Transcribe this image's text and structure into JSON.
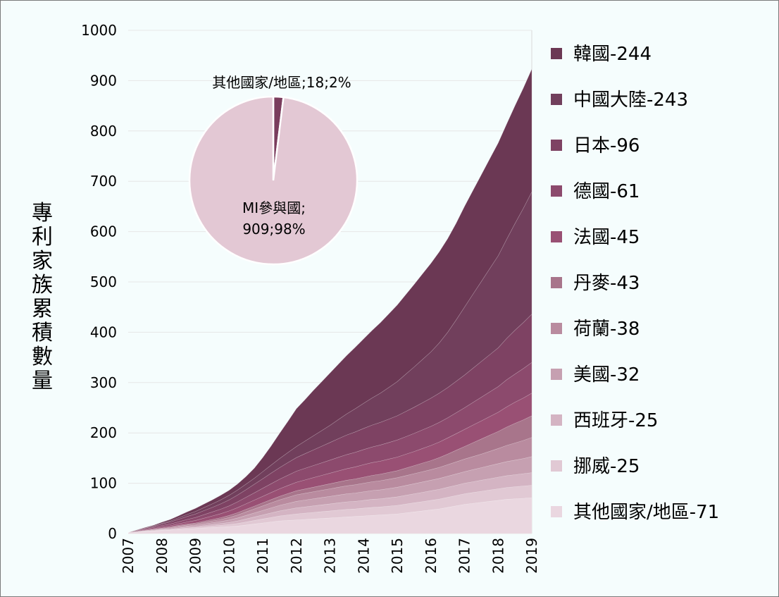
{
  "chart_data": {
    "type": "area",
    "stacked": true,
    "ylabel": "專利家族累積數量",
    "xlabel": "",
    "ylim": [
      0,
      1000
    ],
    "yticks": [
      0,
      100,
      200,
      300,
      400,
      500,
      600,
      700,
      800,
      900,
      1000
    ],
    "x_tick_labels": [
      "2007",
      "2008",
      "2009",
      "2010",
      "2011",
      "2012",
      "2013",
      "2014",
      "2015",
      "2016",
      "2017",
      "2018",
      "2019"
    ],
    "x": [
      2007.0,
      2007.25,
      2007.5,
      2007.75,
      2008.0,
      2008.25,
      2008.5,
      2008.75,
      2009.0,
      2009.25,
      2009.5,
      2009.75,
      2010.0,
      2010.25,
      2010.5,
      2010.75,
      2011.0,
      2011.25,
      2011.5,
      2011.75,
      2012.0,
      2012.25,
      2012.5,
      2012.75,
      2013.0,
      2013.25,
      2013.5,
      2013.75,
      2014.0,
      2014.25,
      2014.5,
      2014.75,
      2015.0,
      2015.25,
      2015.5,
      2015.75,
      2016.0,
      2016.25,
      2016.5,
      2016.75,
      2017.0,
      2017.25,
      2017.5,
      2017.75,
      2018.0,
      2018.25,
      2018.5,
      2018.75,
      2019.0
    ],
    "series": [
      {
        "name": "其他國家/地區",
        "legend": "其他國家/地區-71",
        "color": "#ead7e0",
        "values": [
          2,
          3,
          4,
          5,
          6,
          7,
          8,
          9,
          10,
          11,
          12,
          13,
          14,
          15,
          17,
          19,
          21,
          23,
          25,
          26,
          27,
          28,
          29,
          30,
          31,
          32,
          33,
          34,
          35,
          36,
          37,
          38,
          39,
          41,
          43,
          45,
          47,
          49,
          52,
          55,
          58,
          60,
          62,
          64,
          66,
          68,
          69,
          70,
          71
        ]
      },
      {
        "name": "挪威",
        "legend": "挪威-25",
        "color": "#e1c9d4",
        "values": [
          0,
          0,
          0.5,
          0.5,
          1,
          1,
          1.5,
          2,
          2,
          2.5,
          3,
          3.5,
          4,
          5,
          6,
          7,
          8,
          9,
          10,
          11,
          12,
          12.5,
          13,
          13.5,
          14,
          14.5,
          15,
          15,
          15.5,
          16,
          16,
          16.5,
          17,
          17.5,
          18,
          18.5,
          19,
          19.5,
          20,
          20.5,
          21,
          21.5,
          22,
          22.5,
          23,
          23.5,
          24,
          24.5,
          25
        ]
      },
      {
        "name": "西班牙",
        "legend": "西班牙-25",
        "color": "#d4b4c3",
        "values": [
          0,
          0,
          0.5,
          0.5,
          1,
          1,
          1.5,
          2,
          2,
          2.5,
          3,
          3.5,
          4,
          5,
          6,
          7,
          8,
          9,
          10,
          11,
          12,
          12.5,
          13,
          13.5,
          14,
          14.5,
          15,
          15,
          15.5,
          16,
          16,
          16.5,
          17,
          17.5,
          18,
          18.5,
          19,
          19.5,
          20,
          20.5,
          21,
          21.5,
          22,
          22.5,
          23,
          23.5,
          24,
          24.5,
          25
        ]
      },
      {
        "name": "美國",
        "legend": "美國-32",
        "color": "#c6a0b1",
        "values": [
          0,
          0.5,
          0.5,
          1,
          1,
          1.5,
          2,
          2,
          2.5,
          3,
          3.5,
          4,
          5,
          6,
          7,
          8,
          9,
          10,
          11,
          12,
          13,
          13.5,
          14,
          14.5,
          15,
          15.5,
          16,
          16.5,
          17,
          17.5,
          18,
          18.5,
          19,
          19.5,
          20,
          20.5,
          21,
          21.5,
          22,
          22.5,
          23,
          24,
          25,
          26,
          27,
          28,
          29,
          30,
          32
        ]
      },
      {
        "name": "荷蘭",
        "legend": "荷蘭-38",
        "color": "#b98b9f",
        "values": [
          0,
          0.5,
          0.5,
          1,
          1,
          1.5,
          2,
          2,
          2.5,
          3,
          3.5,
          4,
          5,
          6,
          7,
          8,
          9,
          10,
          11,
          12,
          13,
          13.5,
          14,
          14.5,
          15,
          15.5,
          16,
          16.5,
          17,
          17.5,
          18,
          18.5,
          19,
          19.5,
          20,
          20.5,
          21,
          22,
          23,
          24,
          25,
          26,
          27,
          28.5,
          30,
          32,
          34,
          36,
          38
        ]
      },
      {
        "name": "丹麥",
        "legend": "丹麥-43",
        "color": "#a8758b",
        "values": [
          0,
          0,
          0.5,
          0.5,
          1,
          1,
          1.5,
          2,
          2,
          2.5,
          3,
          3.5,
          4,
          4.5,
          5,
          5.5,
          6,
          6.5,
          7,
          7.5,
          8,
          8.5,
          9,
          9.5,
          10,
          10.5,
          11,
          11.5,
          12,
          12.5,
          13,
          13.5,
          14,
          15,
          16,
          17,
          18,
          19.5,
          21,
          23,
          25,
          27.5,
          30,
          32,
          34,
          36.5,
          39,
          41,
          43
        ]
      },
      {
        "name": "法國",
        "legend": "法國-45",
        "color": "#995074",
        "values": [
          0,
          0.5,
          1,
          1.5,
          2,
          2.5,
          3,
          4,
          5,
          6,
          7,
          8,
          9,
          10,
          11,
          12,
          13,
          14,
          15,
          16,
          17,
          18,
          19,
          20,
          21,
          22,
          23,
          24,
          25,
          25.5,
          26,
          26.5,
          27,
          27.5,
          28,
          29,
          30,
          31,
          32,
          33,
          34,
          35,
          36,
          37,
          38,
          40,
          42,
          43.5,
          45
        ]
      },
      {
        "name": "德國",
        "legend": "德國-61",
        "color": "#8c4a6d",
        "values": [
          0,
          1,
          1.5,
          2,
          3,
          3.5,
          4,
          5,
          6,
          7,
          8,
          9,
          10,
          11.5,
          13,
          14.5,
          16,
          17.5,
          19,
          20.5,
          22,
          23,
          24,
          25,
          26,
          27,
          28,
          29,
          30,
          31,
          32,
          33,
          34,
          35,
          36,
          37,
          38,
          39,
          40,
          41.5,
          43,
          45,
          47,
          49,
          51,
          54,
          56,
          58.5,
          61
        ]
      },
      {
        "name": "日本",
        "legend": "日本-96",
        "color": "#7e4263",
        "values": [
          0,
          1,
          1.5,
          2,
          3,
          4,
          5,
          6,
          7,
          8,
          9,
          10.5,
          12,
          13.5,
          15,
          17,
          19,
          21,
          23,
          25,
          27,
          29,
          31,
          33,
          35,
          37,
          39,
          40.5,
          42,
          43.5,
          45,
          46.5,
          48,
          50,
          52,
          54,
          56,
          58,
          60,
          62.5,
          65,
          68,
          71,
          74,
          77,
          82,
          87,
          91.5,
          96
        ]
      },
      {
        "name": "中國大陸",
        "legend": "中國大陸-243",
        "color": "#713f5c",
        "values": [
          0,
          0,
          0.5,
          1,
          1.5,
          2,
          3,
          4,
          5,
          6,
          7,
          8,
          9,
          10,
          11,
          12,
          14,
          16,
          18,
          20,
          22,
          25,
          28,
          31,
          34,
          38,
          42,
          46,
          50,
          54,
          58,
          63,
          68,
          74,
          80,
          86,
          92,
          100,
          110,
          122,
          135,
          147,
          159,
          171,
          183,
          197,
          212,
          227,
          243
        ]
      },
      {
        "name": "韓國",
        "legend": "韓國-244",
        "color": "#6b3854",
        "values": [
          0,
          0.5,
          1,
          1.5,
          2,
          3,
          4,
          5,
          6,
          7,
          8,
          9,
          10,
          12,
          15,
          20,
          28,
          38,
          50,
          62,
          75,
          82,
          90,
          97,
          104,
          110,
          116,
          122,
          128,
          134,
          140,
          146,
          152,
          158,
          164,
          170,
          176,
          181,
          186,
          192,
          200,
          206,
          212,
          218,
          224,
          229,
          234,
          239,
          244
        ]
      }
    ],
    "inset_pie": {
      "slices": [
        {
          "name": "MI參與國",
          "value": 909,
          "percent": 98,
          "color": "#e3c8d4"
        },
        {
          "name": "其他國家/地區",
          "value": 18,
          "percent": 2,
          "color": "#7a3d5d"
        }
      ],
      "label_main": "MI參與國;",
      "label_main_line2": "909;98%",
      "label_other": "其他國家/地區;18;2%"
    }
  }
}
